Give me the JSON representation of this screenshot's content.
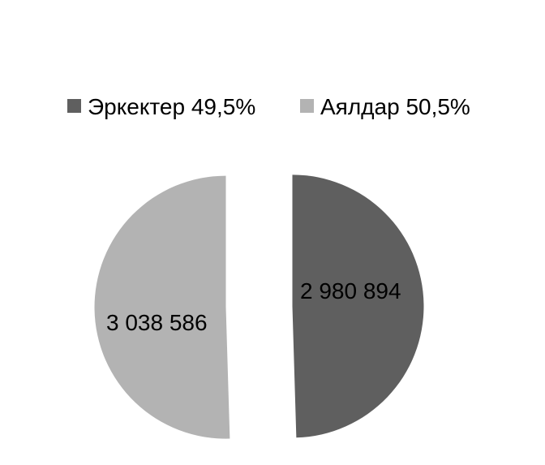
{
  "chart_data": {
    "type": "pie",
    "exploded": true,
    "legend_position": "top",
    "series": [
      {
        "name": "Эркектер",
        "legend_label": "Эркектер 49,5%",
        "value": 2980894,
        "value_label": "2 980 894",
        "percent": 49.5,
        "color": "#5f5f5f"
      },
      {
        "name": "Аялдар",
        "legend_label": "Аялдар 50,5%",
        "value": 3038586,
        "value_label": "3 038 586",
        "percent": 50.5,
        "color": "#b3b3b3"
      }
    ]
  }
}
